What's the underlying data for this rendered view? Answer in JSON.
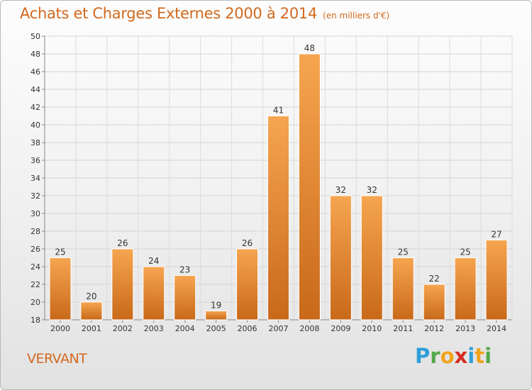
{
  "chart_data": {
    "type": "bar",
    "title": "Achats et Charges Externes 2000 à 2014",
    "subtitle": "(en milliers d'€)",
    "categories": [
      "2000",
      "2001",
      "2002",
      "2003",
      "2004",
      "2005",
      "2006",
      "2007",
      "2008",
      "2009",
      "2010",
      "2011",
      "2012",
      "2013",
      "2014"
    ],
    "values": [
      25,
      20,
      26,
      24,
      23,
      19,
      26,
      41,
      48,
      32,
      32,
      25,
      22,
      25,
      27
    ],
    "ylim": [
      18,
      50
    ],
    "yticks": [
      18,
      20,
      22,
      24,
      26,
      28,
      30,
      32,
      34,
      36,
      38,
      40,
      42,
      44,
      46,
      48,
      50
    ],
    "grid": true,
    "xlabel": "",
    "ylabel": "",
    "bar_color": "#f5a04a",
    "bar_color_dark": "#c8691a"
  },
  "footer": {
    "commune": "VERVANT",
    "brand": [
      "P",
      "r",
      "o",
      "x",
      "i",
      "t",
      "i"
    ]
  }
}
